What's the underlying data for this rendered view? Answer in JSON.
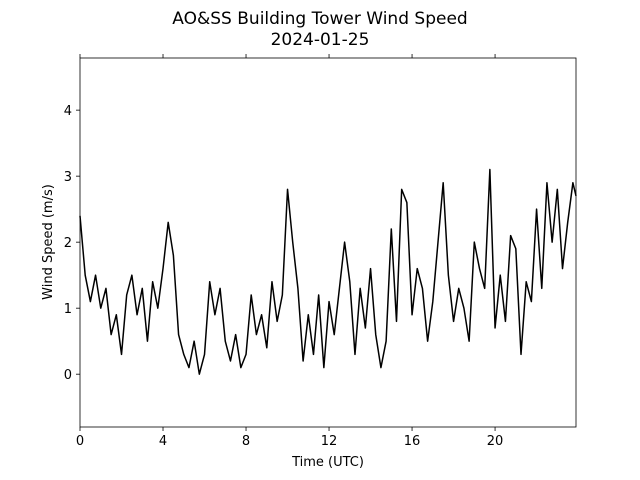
{
  "chart_data": {
    "type": "line",
    "title": "AO&SS Building Tower Wind Speed",
    "subtitle": "2024-01-25",
    "x_label": "Time (UTC)",
    "y_label": "Wind Speed (m/s)",
    "color": "#000000",
    "x": [
      0,
      0.25,
      0.5,
      0.75,
      1,
      1.25,
      1.5,
      1.75,
      2,
      2.25,
      2.5,
      2.75,
      3,
      3.25,
      3.5,
      3.75,
      4,
      4.25,
      4.5,
      4.75,
      5,
      5.25,
      5.5,
      5.75,
      6,
      6.25,
      6.5,
      6.75,
      7,
      7.25,
      7.5,
      7.75,
      8,
      8.25,
      8.5,
      8.75,
      9,
      9.25,
      9.5,
      9.75,
      10,
      10.25,
      10.5,
      10.75,
      11,
      11.25,
      11.5,
      11.75,
      12,
      12.25,
      12.5,
      12.75,
      13,
      13.25,
      13.5,
      13.75,
      14,
      14.25,
      14.5,
      14.75,
      15,
      15.25,
      15.5,
      15.75,
      16,
      16.25,
      16.5,
      16.75,
      17,
      17.25,
      17.5,
      17.75,
      18,
      18.25,
      18.5,
      18.75,
      19,
      19.25,
      19.5,
      19.75,
      20,
      20.25,
      20.5,
      20.75,
      21,
      21.25,
      21.5,
      21.75,
      22,
      22.25,
      22.5,
      22.75,
      23,
      23.25,
      23.5,
      23.75,
      23.9
    ],
    "values": [
      2.4,
      1.5,
      1.1,
      1.5,
      1.0,
      1.3,
      0.6,
      0.9,
      0.3,
      1.2,
      1.5,
      0.9,
      1.3,
      0.5,
      1.4,
      1.0,
      1.6,
      2.3,
      1.8,
      0.6,
      0.3,
      0.1,
      0.5,
      0.0,
      0.3,
      1.4,
      0.9,
      1.3,
      0.5,
      0.2,
      0.6,
      0.1,
      0.3,
      1.2,
      0.6,
      0.9,
      0.4,
      1.4,
      0.8,
      1.2,
      2.8,
      2.0,
      1.3,
      0.2,
      0.9,
      0.3,
      1.2,
      0.1,
      1.1,
      0.6,
      1.3,
      2.0,
      1.4,
      0.3,
      1.3,
      0.7,
      1.6,
      0.6,
      0.1,
      0.5,
      2.2,
      0.8,
      2.8,
      2.6,
      0.9,
      1.6,
      1.3,
      0.5,
      1.1,
      2.0,
      2.9,
      1.5,
      0.8,
      1.3,
      1.0,
      0.5,
      2.0,
      1.6,
      1.3,
      3.1,
      0.7,
      1.5,
      0.8,
      2.1,
      1.9,
      0.3,
      1.4,
      1.1,
      2.5,
      1.3,
      2.9,
      2.0,
      2.8,
      1.6,
      2.3,
      2.9,
      2.7
    ],
    "xlim": [
      0,
      23.9
    ],
    "xticks": [
      0,
      4,
      8,
      12,
      16,
      20
    ],
    "ylim": [
      -0.8,
      4.79
    ],
    "yticks": [
      0,
      1,
      2,
      3,
      4
    ]
  }
}
